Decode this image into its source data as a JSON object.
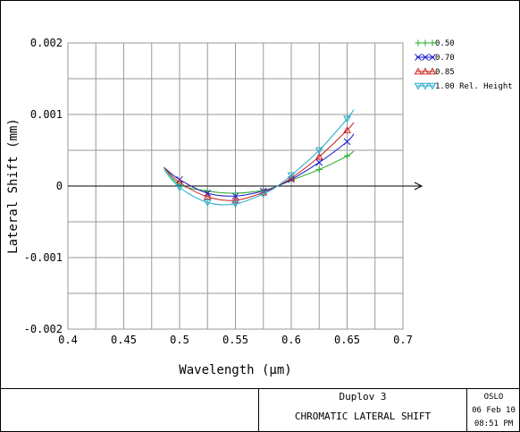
{
  "chart_data": {
    "type": "line",
    "xlabel": "Wavelength (µm)",
    "ylabel": "Lateral Shift (mm)",
    "xlim": [
      0.4,
      0.7
    ],
    "ylim": [
      -0.002,
      0.002
    ],
    "x_ticks": [
      0.4,
      0.45,
      0.5,
      0.55,
      0.6,
      0.65,
      0.7
    ],
    "x_tick_labels": [
      "0.4",
      "0.45",
      "0.5",
      "0.55",
      "0.6",
      "0.65",
      "0.7"
    ],
    "y_ticks": [
      0.002,
      0.001,
      0,
      -0.001,
      -0.002
    ],
    "y_tick_labels": [
      "0.002",
      "0.001",
      "0",
      "-0.001",
      "-0.002"
    ],
    "grid": true,
    "legend_position": "top-right",
    "series": [
      {
        "name": "0.50",
        "marker": "+",
        "color": "#22aa22",
        "x": [
          0.486,
          0.5,
          0.525,
          0.55,
          0.575,
          0.5876,
          0.6,
          0.625,
          0.65,
          0.656
        ],
        "y": [
          0.00026,
          2e-05,
          -7e-05,
          -0.0001,
          -6e-05,
          0.0,
          8e-05,
          0.00023,
          0.00042,
          0.00049
        ]
      },
      {
        "name": "0.70",
        "marker": "x",
        "color": "#1a1acc",
        "x": [
          0.486,
          0.5,
          0.525,
          0.55,
          0.575,
          0.5876,
          0.6,
          0.625,
          0.65,
          0.656
        ],
        "y": [
          0.00026,
          9e-05,
          -0.0001,
          -0.00014,
          -7e-05,
          0.0,
          9e-05,
          0.00033,
          0.00062,
          0.00073
        ]
      },
      {
        "name": "0.85",
        "marker": "triangle-up",
        "color": "#cc2222",
        "x": [
          0.486,
          0.5,
          0.525,
          0.55,
          0.575,
          0.5876,
          0.6,
          0.625,
          0.65,
          0.656
        ],
        "y": [
          0.00026,
          5e-05,
          -0.00015,
          -0.0002,
          -9e-05,
          0.0,
          0.00011,
          0.00041,
          0.00078,
          0.00089
        ]
      },
      {
        "name": "1.00 Rel. Height",
        "marker": "triangle-down",
        "color": "#22aacc",
        "x": [
          0.486,
          0.5,
          0.525,
          0.55,
          0.575,
          0.5876,
          0.6,
          0.625,
          0.65,
          0.656
        ],
        "y": [
          0.00023,
          -2e-05,
          -0.00023,
          -0.00025,
          -0.00011,
          0.0,
          0.00015,
          0.0005,
          0.00094,
          0.00107
        ]
      }
    ]
  },
  "title_block": {
    "lens_name": "Duplov 3",
    "plot_title": "CHROMATIC LATERAL SHIFT",
    "program": "OSLO",
    "date": "06 Feb 10",
    "time": "08:51 PM"
  }
}
